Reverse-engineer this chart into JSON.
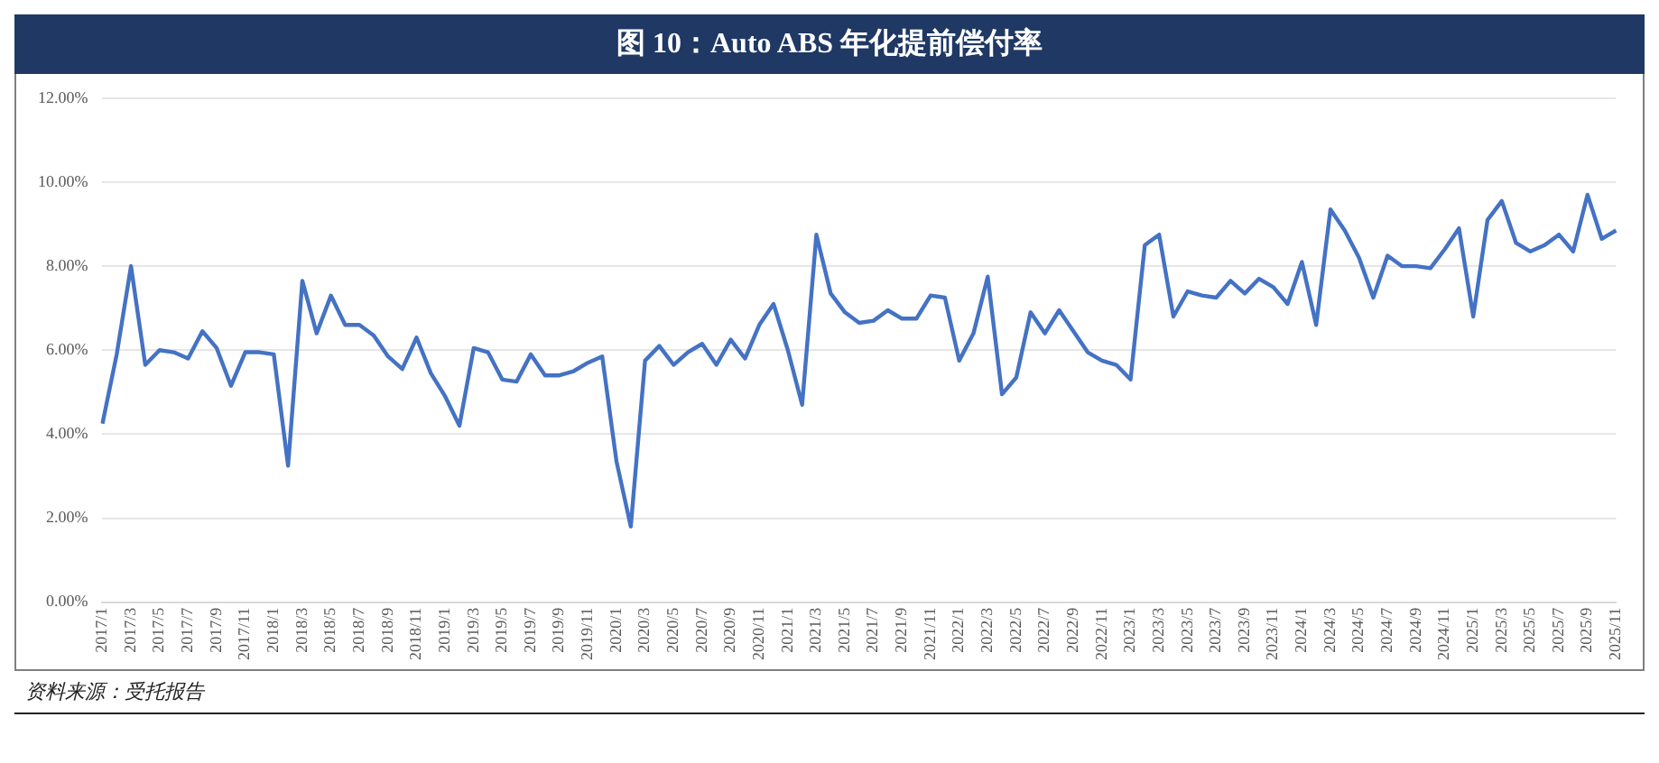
{
  "chart_data": {
    "type": "line",
    "title": "图 10：Auto ABS 年化提前偿付率",
    "categories": [
      "2017/1",
      null,
      "2017/3",
      null,
      "2017/5",
      null,
      "2017/7",
      null,
      "2017/9",
      null,
      "2017/11",
      null,
      "2018/1",
      null,
      "2018/3",
      null,
      "2018/5",
      null,
      "2018/7",
      null,
      "2018/9",
      null,
      "2018/11",
      null,
      "2019/1",
      null,
      "2019/3",
      null,
      "2019/5",
      null,
      "2019/7",
      null,
      "2019/9",
      null,
      "2019/11",
      null,
      "2020/1",
      null,
      "2020/3",
      null,
      "2020/5",
      null,
      "2020/7",
      null,
      "2020/9",
      null,
      "2020/11",
      null,
      "2021/1",
      null,
      "2021/3",
      null,
      "2021/5",
      null,
      "2021/7",
      null,
      "2021/9",
      null,
      "2021/11",
      null,
      "2022/1",
      null,
      "2022/3",
      null,
      "2022/5",
      null,
      "2022/7",
      null,
      "2022/9",
      null,
      "2022/11",
      null,
      "2023/1",
      null,
      "2023/3",
      null,
      "2023/5",
      null,
      "2023/7",
      null,
      "2023/9",
      null,
      "2023/11",
      null,
      "2024/1",
      null,
      "2024/3",
      null,
      "2024/5",
      null,
      "2024/7",
      null,
      "2024/9",
      null,
      "2024/11",
      null,
      "2025/1",
      null,
      "2025/3",
      null,
      "2025/5",
      null,
      "2025/7",
      null,
      "2025/9",
      null,
      "2025/11"
    ],
    "series": [
      {
        "color": "#4472c4",
        "values": [
          4.25,
          5.9,
          8.0,
          5.65,
          6.0,
          5.95,
          5.8,
          6.45,
          6.05,
          5.15,
          5.95,
          5.95,
          5.9,
          3.25,
          7.65,
          6.4,
          7.3,
          6.6,
          6.6,
          6.35,
          5.85,
          5.55,
          6.3,
          5.45,
          4.9,
          4.2,
          6.05,
          5.95,
          5.3,
          5.25,
          5.9,
          5.4,
          5.4,
          5.5,
          5.7,
          5.85,
          3.35,
          1.8,
          5.75,
          6.1,
          5.65,
          5.95,
          6.15,
          5.65,
          6.25,
          5.8,
          6.6,
          7.1,
          6.0,
          4.7,
          8.75,
          7.35,
          6.9,
          6.65,
          6.7,
          6.95,
          6.75,
          6.75,
          7.3,
          7.25,
          5.75,
          6.4,
          7.75,
          4.95,
          5.35,
          6.9,
          6.4,
          6.95,
          6.45,
          5.95,
          5.75,
          5.65,
          5.3,
          8.5,
          8.75,
          6.8,
          7.4,
          7.3,
          7.25,
          7.65,
          7.35,
          7.7,
          7.5,
          7.1,
          8.1,
          6.6,
          9.35,
          8.85,
          8.2,
          7.25,
          8.25,
          8.0,
          8.0,
          7.95,
          8.4,
          8.9,
          6.8,
          9.1,
          9.55,
          8.55,
          8.35,
          8.5,
          8.75,
          8.35,
          9.7,
          8.65,
          8.85
        ]
      }
    ],
    "ylim": [
      0,
      12
    ],
    "yticks": [
      {
        "value": 0,
        "label": "0.00%"
      },
      {
        "value": 2,
        "label": "2.00%"
      },
      {
        "value": 4,
        "label": "4.00%"
      },
      {
        "value": 6,
        "label": "6.00%"
      },
      {
        "value": 8,
        "label": "8.00%"
      },
      {
        "value": 10,
        "label": "10.00%"
      },
      {
        "value": 12,
        "label": "12.00%"
      }
    ],
    "grid": "y",
    "legend": false,
    "marker": "none",
    "line_style": "solid",
    "annotations": [
      "资料来源：受托报告"
    ]
  }
}
